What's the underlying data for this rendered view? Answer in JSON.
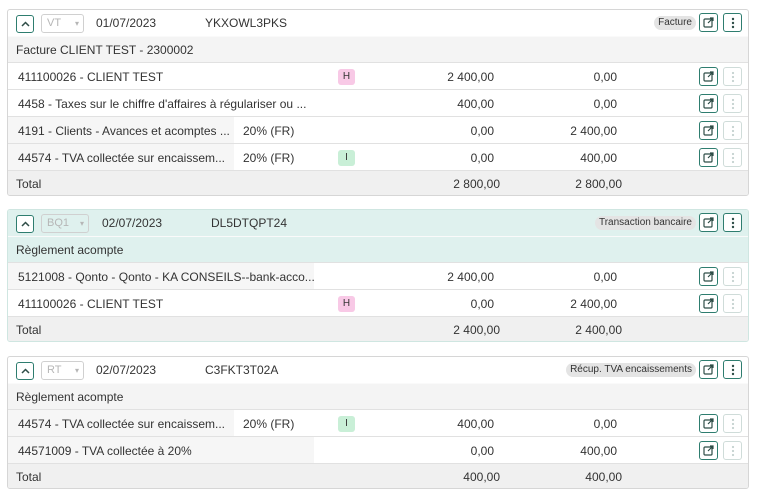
{
  "entries": [
    {
      "journal": "VT",
      "date": "01/07/2023",
      "ref": "YKXOWL3PKS",
      "type_badge": "Facture",
      "label": "Facture CLIENT TEST - 2300002",
      "lines": [
        {
          "account": "411100026 - CLIENT TEST",
          "vat": "",
          "tag": "H",
          "debit": "2 400,00",
          "credit": "0,00"
        },
        {
          "account": "4458 - Taxes sur le chiffre d'affaires à régulariser ou ...",
          "vat": "",
          "tag": "",
          "debit": "400,00",
          "credit": "0,00"
        },
        {
          "account": "4191 - Clients - Avances et acomptes ...",
          "vat": "20% (FR)",
          "tag": "",
          "debit": "0,00",
          "credit": "2 400,00"
        },
        {
          "account": "44574 - TVA collectée sur encaissem...",
          "vat": "20% (FR)",
          "tag": "I",
          "debit": "0,00",
          "credit": "400,00"
        }
      ],
      "total_label": "Total",
      "total_debit": "2 800,00",
      "total_credit": "2 800,00"
    },
    {
      "journal": "BQ1",
      "date": "02/07/2023",
      "ref": "DL5DTQPT24",
      "type_badge": "Transaction bancaire",
      "label": "Règlement acompte",
      "lines": [
        {
          "account": "5121008 - Qonto - Qonto - KA CONSEILS--bank-acco...",
          "vat": "",
          "tag": "",
          "debit": "2 400,00",
          "credit": "0,00"
        },
        {
          "account": "411100026 - CLIENT TEST",
          "vat": "",
          "tag": "H",
          "debit": "0,00",
          "credit": "2 400,00"
        }
      ],
      "total_label": "Total",
      "total_debit": "2 400,00",
      "total_credit": "2 400,00"
    },
    {
      "journal": "RT",
      "date": "02/07/2023",
      "ref": "C3FKT3T02A",
      "type_badge": "Récup. TVA encaissements",
      "label": "Règlement acompte",
      "lines": [
        {
          "account": "44574 - TVA collectée sur encaissem...",
          "vat": "20% (FR)",
          "tag": "I",
          "debit": "400,00",
          "credit": "0,00"
        },
        {
          "account": "44571009 - TVA collectée à 20%",
          "vat": "",
          "tag": "",
          "debit": "0,00",
          "credit": "400,00"
        }
      ],
      "total_label": "Total",
      "total_debit": "400,00",
      "total_credit": "400,00"
    }
  ],
  "colors": {
    "accent": "#2e7d6f",
    "highlight_header": "#dff1ee",
    "tag_h": "#f8c9e6",
    "tag_i": "#c9efd7"
  }
}
